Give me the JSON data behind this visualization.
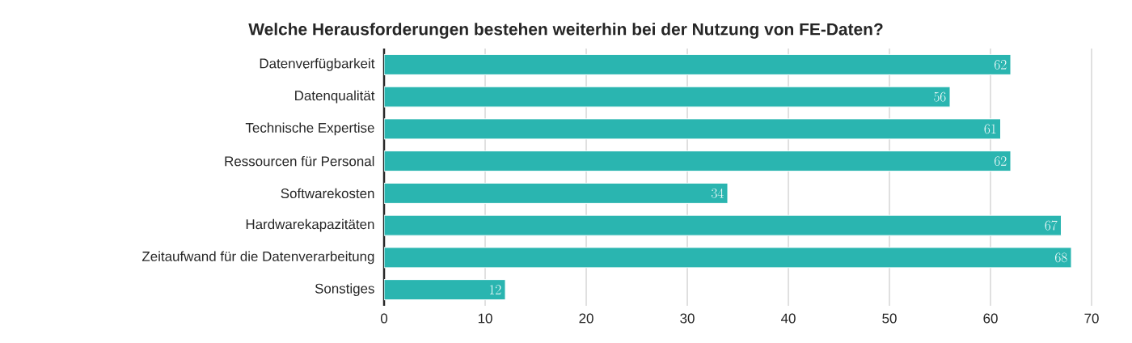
{
  "chart_data": {
    "type": "bar",
    "orientation": "horizontal",
    "title": "Welche Herausforderungen bestehen weiterhin bei der Nutzung von FE-Daten?",
    "categories": [
      "Datenverfügbarkeit",
      "Datenqualität",
      "Technische Expertise",
      "Ressourcen für Personal",
      "Softwarekosten",
      "Hardwarekapazitäten",
      "Zeitaufwand für die Datenverarbeitung",
      "Sonstiges"
    ],
    "values": [
      62,
      56,
      61,
      62,
      34,
      67,
      68,
      12
    ],
    "color": "#2ab5b0",
    "xlim": [
      0,
      70
    ],
    "xticks": [
      0,
      10,
      20,
      30,
      40,
      50,
      60,
      70
    ],
    "grid": "x",
    "data_labels": true
  }
}
